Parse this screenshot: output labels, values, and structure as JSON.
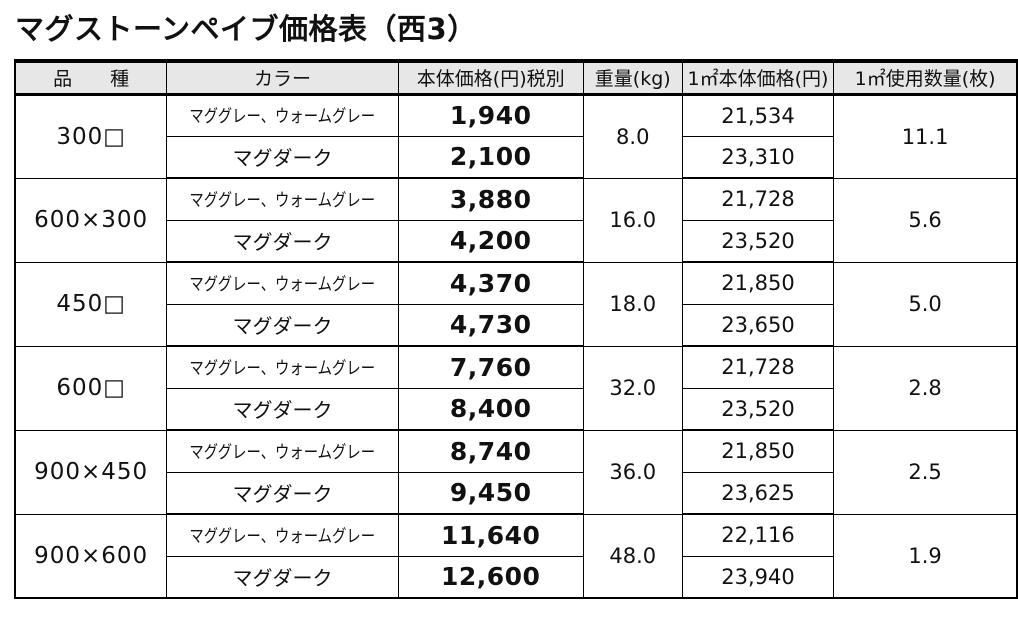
{
  "title": "マグストーンペイブ価格表（西3）",
  "table": {
    "headers": [
      "品　　種",
      "カラー",
      "本体価格(円)税別",
      "重量(kg)",
      "1㎡本体価格(円)",
      "1㎡使用数量(枚)"
    ],
    "rows": [
      {
        "product": "300□",
        "weight": "8.0",
        "per_sqm_qty": "11.1",
        "variants": [
          {
            "color": "マググレー、ウォームグレー",
            "price": "1,940",
            "per_sqm_price": "21,534"
          },
          {
            "color": "マグダーク",
            "price": "2,100",
            "per_sqm_price": "23,310"
          }
        ]
      },
      {
        "product": "600×300",
        "weight": "16.0",
        "per_sqm_qty": "5.6",
        "variants": [
          {
            "color": "マググレー、ウォームグレー",
            "price": "3,880",
            "per_sqm_price": "21,728"
          },
          {
            "color": "マグダーク",
            "price": "4,200",
            "per_sqm_price": "23,520"
          }
        ]
      },
      {
        "product": "450□",
        "weight": "18.0",
        "per_sqm_qty": "5.0",
        "variants": [
          {
            "color": "マググレー、ウォームグレー",
            "price": "4,370",
            "per_sqm_price": "21,850"
          },
          {
            "color": "マグダーク",
            "price": "4,730",
            "per_sqm_price": "23,650"
          }
        ]
      },
      {
        "product": "600□",
        "weight": "32.0",
        "per_sqm_qty": "2.8",
        "variants": [
          {
            "color": "マググレー、ウォームグレー",
            "price": "7,760",
            "per_sqm_price": "21,728"
          },
          {
            "color": "マグダーク",
            "price": "8,400",
            "per_sqm_price": "23,520"
          }
        ]
      },
      {
        "product": "900×450",
        "weight": "36.0",
        "per_sqm_qty": "2.5",
        "variants": [
          {
            "color": "マググレー、ウォームグレー",
            "price": "8,740",
            "per_sqm_price": "21,850"
          },
          {
            "color": "マグダーク",
            "price": "9,450",
            "per_sqm_price": "23,625"
          }
        ]
      },
      {
        "product": "900×600",
        "weight": "48.0",
        "per_sqm_qty": "1.9",
        "variants": [
          {
            "color": "マググレー、ウォームグレー",
            "price": "11,640",
            "per_sqm_price": "22,116"
          },
          {
            "color": "マグダーク",
            "price": "12,600",
            "per_sqm_price": "23,940"
          }
        ]
      }
    ]
  },
  "colors": {
    "header_bg": "#e7e7e7",
    "border": "#000000",
    "text": "#111111",
    "page_bg": "#ffffff"
  }
}
